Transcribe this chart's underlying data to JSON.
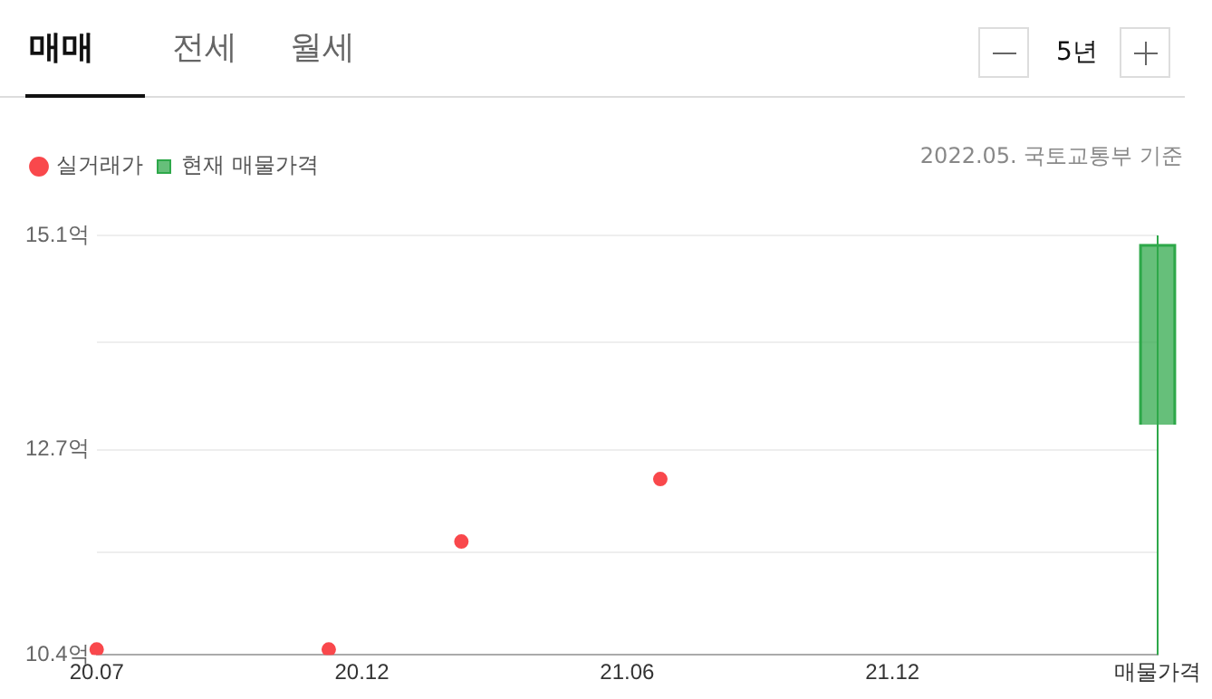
{
  "chart_data": {
    "type": "scatter",
    "annotations": [
      "매매",
      "전세",
      "월세",
      "5년",
      "2022.05. 국토교통부 기준"
    ],
    "categories": [
      "20.07",
      null,
      null,
      null,
      null,
      null,
      null,
      null,
      "20.12",
      null,
      null,
      null,
      null,
      null,
      null,
      null,
      "21.06",
      null,
      null,
      null,
      null,
      null,
      null,
      null,
      "21.12",
      null,
      null,
      null,
      null,
      null,
      null,
      null,
      "매물가격"
    ],
    "ylim": [
      10.4,
      15.1
    ],
    "yticks": [
      {
        "value": 10.4,
        "label": "10.4억"
      },
      {
        "value": 11.55,
        "label": null
      },
      {
        "value": 12.7,
        "label": "12.7억"
      },
      {
        "value": 13.9,
        "label": null
      },
      {
        "value": 15.1,
        "label": "15.1억"
      }
    ],
    "grid": "y",
    "legend": "top left",
    "marker": "circle",
    "ref_lines": [
      {
        "axis": "x",
        "value": "매물가격",
        "color": "#2ea84a"
      }
    ],
    "series": [
      {
        "name": "실거래가",
        "color": "#f9484c",
        "values": [
          10.46,
          null,
          null,
          null,
          null,
          null,
          null,
          10.46,
          null,
          null,
          null,
          11.67,
          null,
          null,
          null,
          null,
          null,
          12.37,
          null,
          null,
          null,
          null,
          null,
          null,
          null,
          null,
          null,
          null,
          null,
          null,
          null,
          null,
          null
        ]
      },
      {
        "name": "현재 매물가격",
        "type": "bar",
        "color": "#2ea84a",
        "base": [
          null,
          null,
          null,
          null,
          null,
          null,
          null,
          null,
          null,
          null,
          null,
          null,
          null,
          null,
          null,
          null,
          null,
          null,
          null,
          null,
          null,
          null,
          null,
          null,
          null,
          null,
          null,
          null,
          null,
          null,
          null,
          null,
          12.98
        ],
        "values": [
          null,
          null,
          null,
          null,
          null,
          null,
          null,
          null,
          null,
          null,
          null,
          null,
          null,
          null,
          null,
          null,
          null,
          null,
          null,
          null,
          null,
          null,
          null,
          null,
          null,
          null,
          null,
          null,
          null,
          null,
          null,
          null,
          2.02
        ]
      }
    ]
  }
}
